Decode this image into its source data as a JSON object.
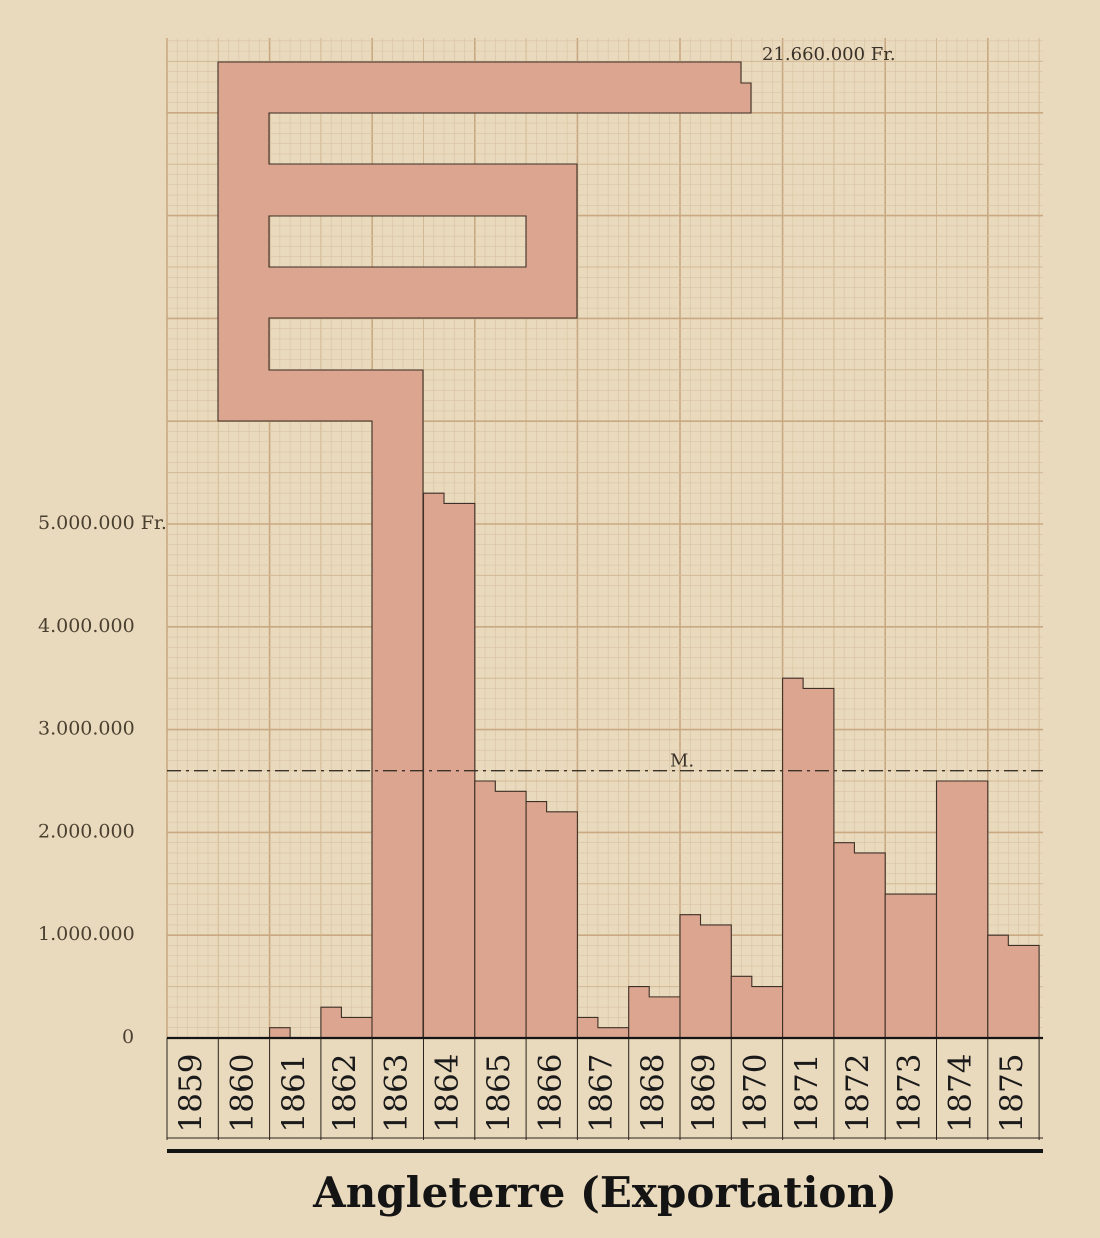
{
  "chart_data": {
    "type": "bar",
    "title": "Angleterre (Exportation)",
    "categories": [
      "1859",
      "1860",
      "1861",
      "1862",
      "1863",
      "1864",
      "1865",
      "1866",
      "1867",
      "1868",
      "1869",
      "1870",
      "1871",
      "1872",
      "1873",
      "1874",
      "1875"
    ],
    "unit": "Fr.",
    "series": [
      {
        "values_by_half_year": [
          [
            0,
            0
          ],
          [
            0,
            0
          ],
          [
            100000,
            0
          ],
          [
            300000,
            200000
          ],
          [
            13000000,
            13000000
          ],
          [
            5300000,
            5200000
          ],
          [
            2500000,
            2400000
          ],
          [
            2300000,
            2200000
          ],
          [
            200000,
            100000
          ],
          [
            500000,
            400000
          ],
          [
            1200000,
            1100000
          ],
          [
            600000,
            500000
          ],
          [
            3500000,
            3400000
          ],
          [
            1900000,
            1800000
          ],
          [
            1400000,
            1400000
          ],
          [
            2500000,
            2500000
          ],
          [
            1000000,
            900000
          ]
        ]
      }
    ],
    "max_value_label": "21.660.000 Fr.",
    "max_value": 21660000,
    "mean_label": "M.",
    "mean_value": 2600000,
    "yticks": [
      {
        "value": 0,
        "label": "0"
      },
      {
        "value": 1000000,
        "label": "1.000.000"
      },
      {
        "value": 2000000,
        "label": "2.000.000"
      },
      {
        "value": 3000000,
        "label": "3.000.000"
      },
      {
        "value": 4000000,
        "label": "4.000.000"
      },
      {
        "value": 5000000,
        "label": "5.000.000 Fr."
      }
    ],
    "ylim": [
      0,
      9700000
    ],
    "grid": true,
    "colors": {
      "background": "#e9d9bd",
      "bar_fill": "#dca58f",
      "bar_stroke": "#3d3026",
      "grid_minor": "#d9c3a2",
      "grid_major": "#c9a982",
      "axis": "#141414"
    }
  }
}
